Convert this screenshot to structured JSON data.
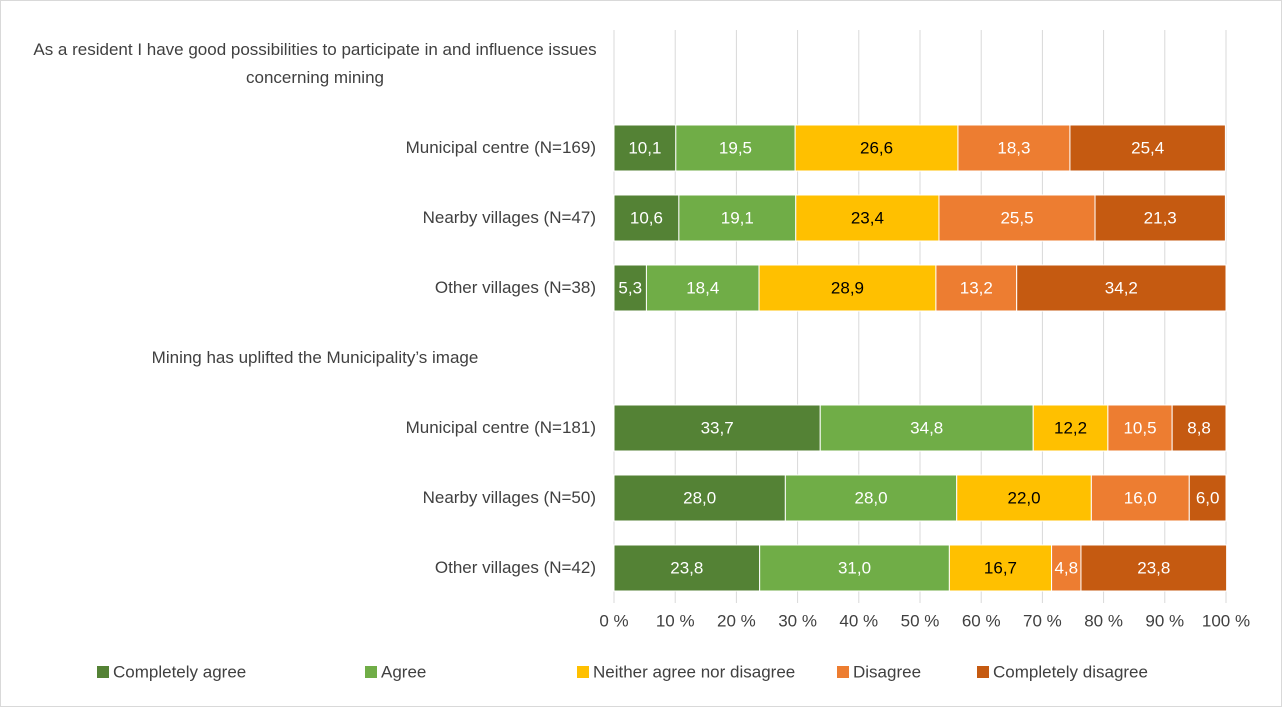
{
  "chart_data": {
    "type": "stacked_bar_horizontal",
    "categories": [
      "As a resident I have good possibilities to participate in and influence issues concerning mining",
      "Municipal centre (N=169)",
      "Nearby villages (N=47)",
      "Other villages (N=38)",
      "Mining has uplifted the Municipality’s image",
      "Municipal centre (N=181)",
      "Nearby villages (N=50)",
      "Other villages (N=42)"
    ],
    "series": [
      {
        "name": "Completely agree",
        "color": "#548235",
        "values": [
          null,
          10.1,
          10.6,
          5.3,
          null,
          33.7,
          28.0,
          23.8
        ],
        "value_labels": [
          null,
          "10,1",
          "10,6",
          "5,3",
          null,
          "33,7",
          "28,0",
          "23,8"
        ]
      },
      {
        "name": "Agree",
        "color": "#70ad47",
        "values": [
          null,
          19.5,
          19.1,
          18.4,
          null,
          34.8,
          28.0,
          31.0
        ],
        "value_labels": [
          null,
          "19,5",
          "19,1",
          "18,4",
          null,
          "34,8",
          "28,0",
          "31,0"
        ]
      },
      {
        "name": "Neither agree nor disagree",
        "color": "#ffc000",
        "values": [
          null,
          26.6,
          23.4,
          28.9,
          null,
          12.2,
          22.0,
          16.7
        ],
        "value_labels": [
          null,
          "26,6",
          "23,4",
          "28,9",
          null,
          "12,2",
          "22,0",
          "16,7"
        ]
      },
      {
        "name": "Disagree",
        "color": "#ed7d31",
        "values": [
          null,
          18.3,
          25.5,
          13.2,
          null,
          10.5,
          16.0,
          4.8
        ],
        "value_labels": [
          null,
          "18,3",
          "25,5",
          "13,2",
          null,
          "10,5",
          "16,0",
          "4,8"
        ]
      },
      {
        "name": "Completely disagree",
        "color": "#c55a11",
        "values": [
          null,
          25.4,
          21.3,
          34.2,
          null,
          8.8,
          6.0,
          23.8
        ],
        "value_labels": [
          null,
          "25,4",
          "21,3",
          "34,2",
          null,
          "8,8",
          "6,0",
          "23,8"
        ]
      }
    ],
    "xlim": [
      0,
      100
    ],
    "xticks": [
      {
        "value": 0,
        "label": "0 %"
      },
      {
        "value": 10,
        "label": "10 %"
      },
      {
        "value": 20,
        "label": "20 %"
      },
      {
        "value": 30,
        "label": "30 %"
      },
      {
        "value": 40,
        "label": "40 %"
      },
      {
        "value": 50,
        "label": "50 %"
      },
      {
        "value": 60,
        "label": "60 %"
      },
      {
        "value": 70,
        "label": "70 %"
      },
      {
        "value": 80,
        "label": "80 %"
      },
      {
        "value": 90,
        "label": "90 %"
      },
      {
        "value": 100,
        "label": "100 %"
      }
    ],
    "grid": true,
    "legend": "bottom"
  }
}
